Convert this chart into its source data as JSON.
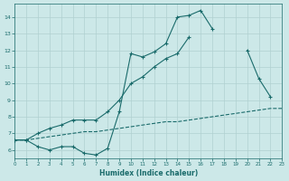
{
  "xlabel": "Humidex (Indice chaleur)",
  "bg_color": "#cce8e8",
  "line_color": "#1a6b6b",
  "grid_color": "#b0d0d0",
  "curve1_x": [
    0,
    1,
    2,
    3,
    4,
    5,
    6,
    7,
    8,
    9,
    10,
    11,
    12,
    13,
    14,
    15,
    16,
    17,
    18
  ],
  "curve1_y": [
    6.6,
    6.6,
    6.2,
    6.0,
    6.2,
    6.2,
    5.8,
    5.7,
    6.1,
    8.3,
    11.8,
    11.6,
    11.9,
    12.4,
    14.0,
    14.1,
    14.4,
    13.3,
    null
  ],
  "curve2_x": [
    0,
    1,
    2,
    3,
    4,
    5,
    6,
    7,
    8,
    9,
    10,
    11,
    12,
    13,
    14,
    15,
    16,
    17,
    18,
    19,
    20,
    21,
    22
  ],
  "curve2_y": [
    6.6,
    6.6,
    7.0,
    7.3,
    7.5,
    7.8,
    7.8,
    7.8,
    8.3,
    9.0,
    10.0,
    10.4,
    11.0,
    11.5,
    11.8,
    12.8,
    null,
    null,
    null,
    null,
    12.0,
    10.3,
    9.2
  ],
  "curve3_x": [
    0,
    1,
    2,
    3,
    4,
    5,
    6,
    7,
    8,
    9,
    10,
    11,
    12,
    13,
    14,
    15,
    16,
    17,
    18,
    19,
    20,
    21,
    22,
    23
  ],
  "curve3_y": [
    6.6,
    6.6,
    6.7,
    6.8,
    6.9,
    7.0,
    7.1,
    7.1,
    7.2,
    7.3,
    7.4,
    7.5,
    7.6,
    7.7,
    7.7,
    7.8,
    7.9,
    8.0,
    8.1,
    8.2,
    8.3,
    8.4,
    8.5,
    8.5
  ],
  "xlim": [
    0,
    23
  ],
  "ylim": [
    5.5,
    14.8
  ],
  "yticks": [
    6,
    7,
    8,
    9,
    10,
    11,
    12,
    13,
    14
  ],
  "xticks": [
    0,
    1,
    2,
    3,
    4,
    5,
    6,
    7,
    8,
    9,
    10,
    11,
    12,
    13,
    14,
    15,
    16,
    17,
    18,
    19,
    20,
    21,
    22,
    23
  ]
}
